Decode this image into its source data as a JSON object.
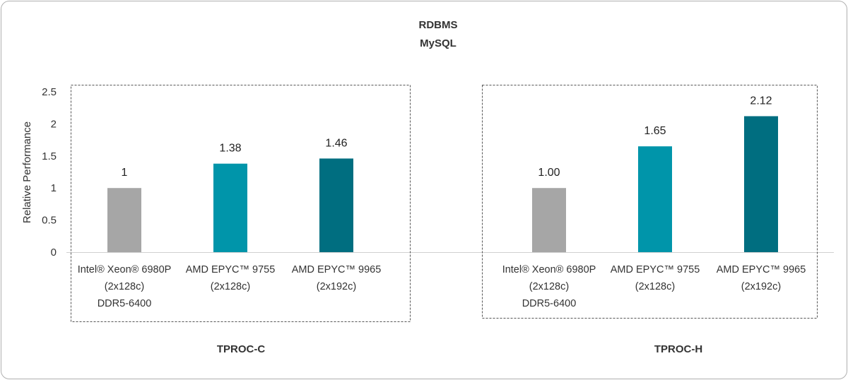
{
  "chart_data": {
    "type": "bar",
    "title": "RDBMS",
    "subtitle": "MySQL",
    "ylabel": "Relative Performance",
    "ylim": [
      0,
      2.5
    ],
    "yticks": [
      "0",
      "0.5",
      "1",
      "1.5",
      "2",
      "2.5"
    ],
    "grid": false,
    "colors": [
      "#a6a6a6",
      "#0095aa",
      "#006e80"
    ],
    "groups": [
      {
        "name": "TPROC-C",
        "bars": [
          {
            "category": [
              "Intel® Xeon® 6980P",
              "(2x128c)",
              "DDR5-6400"
            ],
            "value": 1,
            "label": "1"
          },
          {
            "category": [
              "AMD EPYC™ 9755",
              "(2x128c)"
            ],
            "value": 1.38,
            "label": "1.38"
          },
          {
            "category": [
              "AMD EPYC™ 9965",
              "(2x192c)"
            ],
            "value": 1.46,
            "label": "1.46"
          }
        ]
      },
      {
        "name": "TPROC-H",
        "bars": [
          {
            "category": [
              "Intel® Xeon® 6980P",
              "(2x128c)",
              "DDR5-6400"
            ],
            "value": 1.0,
            "label": "1.00"
          },
          {
            "category": [
              "AMD EPYC™ 9755",
              "(2x128c)"
            ],
            "value": 1.65,
            "label": "1.65"
          },
          {
            "category": [
              "AMD EPYC™ 9965",
              "(2x192c)"
            ],
            "value": 2.12,
            "label": "2.12"
          }
        ]
      }
    ]
  }
}
